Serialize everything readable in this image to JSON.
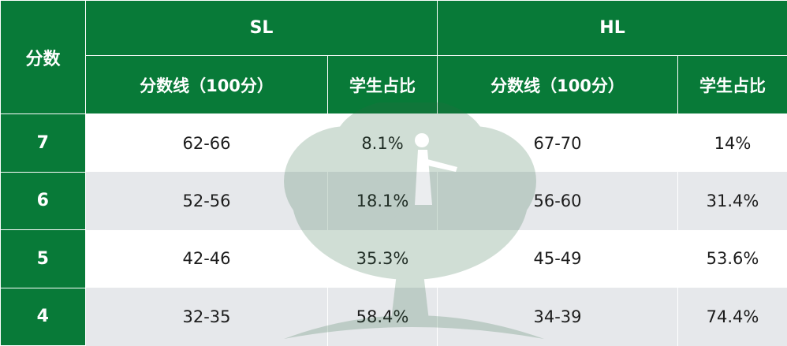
{
  "header": {
    "score_label": "分数",
    "groups": [
      {
        "label": "SL",
        "columns": [
          "分数线（100分）",
          "学生占比"
        ]
      },
      {
        "label": "HL",
        "columns": [
          "分数线（100分）",
          "学生占比"
        ]
      }
    ]
  },
  "rows": [
    {
      "score": "7",
      "sl_range": "62-66",
      "sl_pct": "8.1%",
      "hl_range": "67-70",
      "hl_pct": "14%"
    },
    {
      "score": "6",
      "sl_range": "52-56",
      "sl_pct": "18.1%",
      "hl_range": "56-60",
      "hl_pct": "31.4%"
    },
    {
      "score": "5",
      "sl_range": "42-46",
      "sl_pct": "35.3%",
      "hl_range": "45-49",
      "hl_pct": "53.6%"
    },
    {
      "score": "4",
      "sl_range": "32-35",
      "sl_pct": "58.4%",
      "hl_range": "34-39",
      "hl_pct": "74.4%"
    }
  ],
  "colors": {
    "header_green": "#087a38",
    "stripe_gray": "#e0e2e6",
    "watermark_green": "#2f6b45"
  },
  "watermark": {
    "icon": "tree-watermark-icon"
  }
}
